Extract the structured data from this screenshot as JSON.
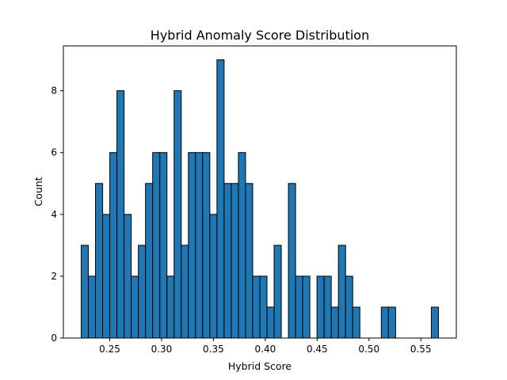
{
  "chart_data": {
    "type": "bar",
    "title": "Hybrid Anomaly Score Distribution",
    "xlabel": "Hybrid Score",
    "ylabel": "Count",
    "x_range": [
      0.2225,
      0.567
    ],
    "xlim": [
      0.2053,
      0.5842
    ],
    "ylim": [
      0,
      9.45
    ],
    "x_ticks": [
      "0.25",
      "0.30",
      "0.35",
      "0.40",
      "0.45",
      "0.50",
      "0.55"
    ],
    "x_tick_values": [
      0.25,
      0.3,
      0.35,
      0.4,
      0.45,
      0.5,
      0.55
    ],
    "y_ticks": [
      "0",
      "2",
      "4",
      "6",
      "8"
    ],
    "y_tick_values": [
      0,
      2,
      4,
      6,
      8
    ],
    "grid": false,
    "bar_color": "#1f77b4",
    "edge_color": "#000000",
    "counts": [
      3,
      2,
      5,
      4,
      6,
      8,
      4,
      2,
      3,
      5,
      6,
      6,
      2,
      8,
      3,
      6,
      6,
      6,
      4,
      9,
      5,
      5,
      6,
      5,
      2,
      2,
      1,
      3,
      0,
      5,
      2,
      2,
      0,
      2,
      2,
      1,
      3,
      2,
      1,
      0,
      0,
      0,
      1,
      1,
      0,
      0,
      0,
      0,
      0,
      1
    ]
  }
}
